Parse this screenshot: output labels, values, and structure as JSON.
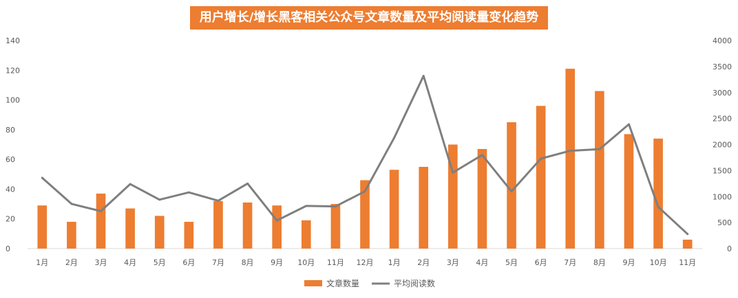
{
  "chart_data": {
    "type": "bar",
    "title": "用户增长/增长黑客相关公众号文章数量及平均阅读量变化趋势",
    "categories": [
      "1月",
      "2月",
      "3月",
      "4月",
      "5月",
      "6月",
      "7月",
      "8月",
      "9月",
      "10月",
      "11月",
      "12月",
      "1月",
      "2月",
      "3月",
      "4月",
      "5月",
      "6月",
      "7月",
      "8月",
      "9月",
      "10月",
      "11月"
    ],
    "y_left": {
      "min": 0,
      "max": 140,
      "ticks": [
        "0",
        "20",
        "40",
        "60",
        "80",
        "100",
        "120",
        "140"
      ]
    },
    "y_right": {
      "min": 0,
      "max": 4000,
      "ticks": [
        "0",
        "500",
        "1000",
        "1500",
        "2000",
        "2500",
        "3000",
        "3500",
        "4000"
      ]
    },
    "grid": false,
    "legend_position": "bottom",
    "series": [
      {
        "name": "文章数量",
        "type": "bar",
        "axis": "left",
        "color": "#ED7D31",
        "values": [
          29,
          18,
          37,
          27,
          22,
          18,
          32,
          31,
          29,
          19,
          30,
          46,
          53,
          55,
          70,
          67,
          85,
          96,
          121,
          106,
          77,
          74,
          6
        ]
      },
      {
        "name": "平均阅读数",
        "type": "line",
        "axis": "right",
        "color": "#7F7F7F",
        "values": [
          1360,
          860,
          720,
          1240,
          940,
          1080,
          920,
          1250,
          540,
          820,
          810,
          1100,
          2130,
          3320,
          1460,
          1800,
          1100,
          1730,
          1880,
          1910,
          2390,
          800,
          280
        ]
      }
    ]
  }
}
